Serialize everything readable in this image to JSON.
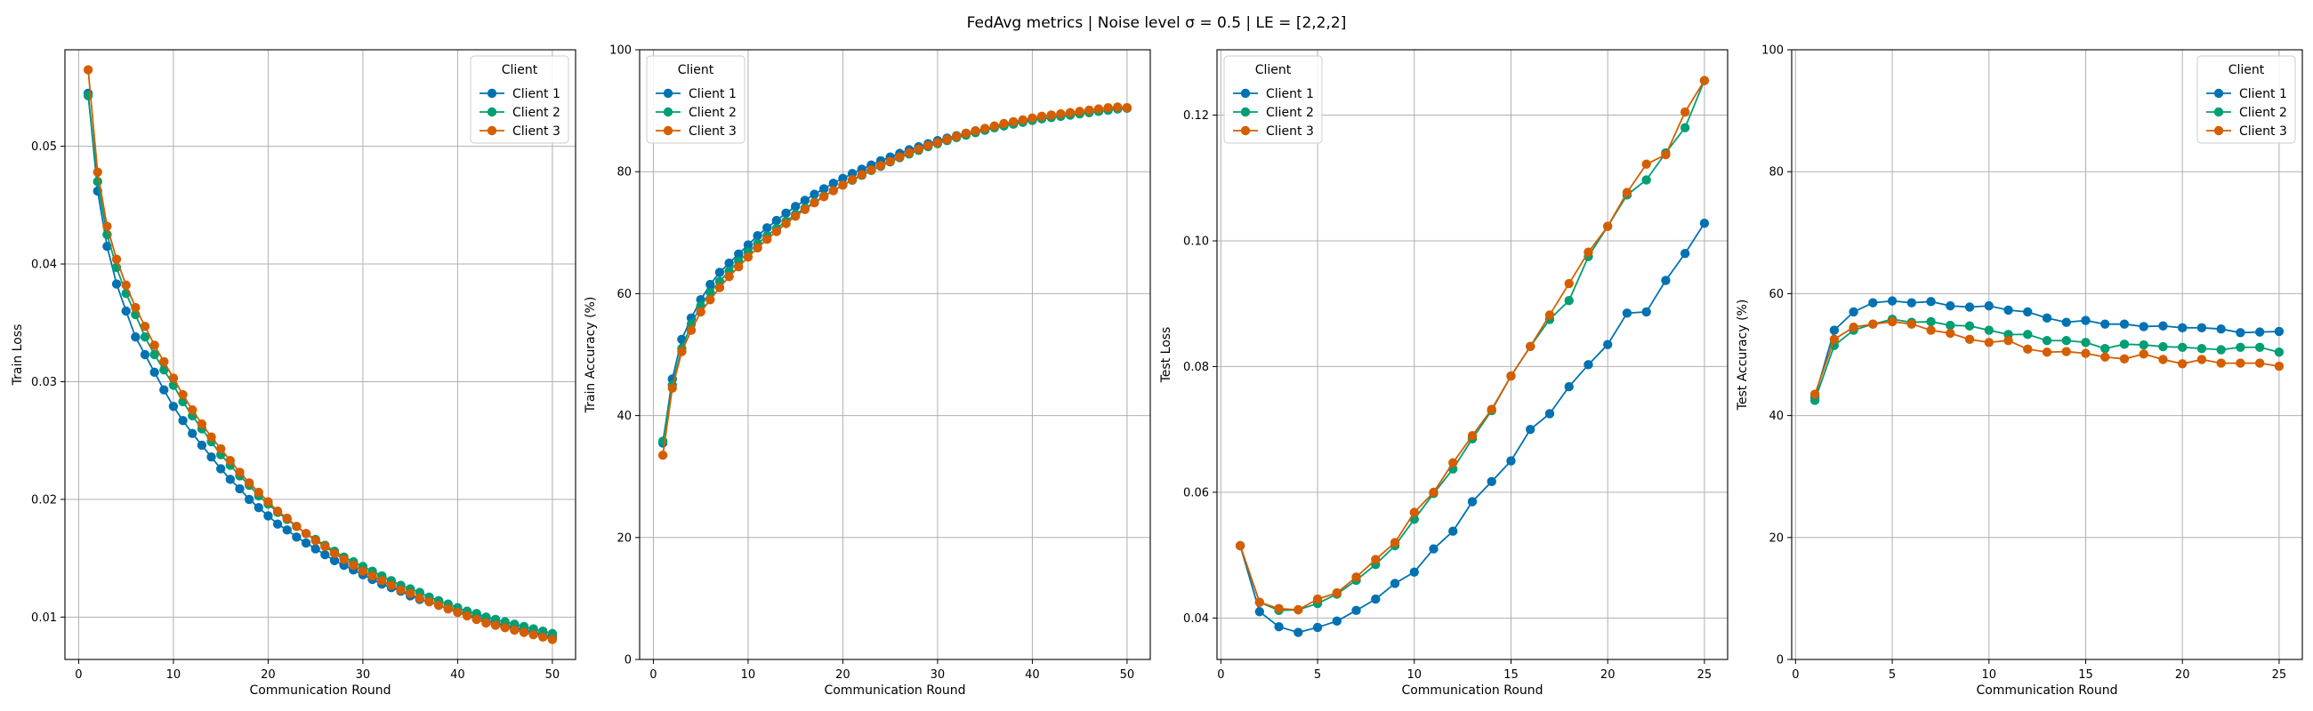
{
  "figure": {
    "suptitle": "FedAvg metrics | Noise level σ = 0.5 | LE = [2,2,2]"
  },
  "colors": {
    "client_1": "#0072B2",
    "client_2": "#009E73",
    "client_3": "#D55E00",
    "grid": "#b0b0b0"
  },
  "chart_data": [
    {
      "type": "line",
      "xlabel": "Communication Round",
      "ylabel": "Train Loss",
      "xlim": [
        -1.45,
        52.45
      ],
      "ylim": [
        0.0064,
        0.0582
      ],
      "xticks": [
        0,
        10,
        20,
        30,
        40,
        50
      ],
      "yticks": [
        0.01,
        0.02,
        0.03,
        0.04,
        0.05
      ],
      "ytick_labels": [
        "0.01",
        "0.02",
        "0.03",
        "0.04",
        "0.05"
      ],
      "grid": true,
      "legend": {
        "title": "Client",
        "position": "top-right"
      },
      "x": [
        1,
        2,
        3,
        4,
        5,
        6,
        7,
        8,
        9,
        10,
        11,
        12,
        13,
        14,
        15,
        16,
        17,
        18,
        19,
        20,
        21,
        22,
        23,
        24,
        25,
        26,
        27,
        28,
        29,
        30,
        31,
        32,
        33,
        34,
        35,
        36,
        37,
        38,
        39,
        40,
        41,
        42,
        43,
        44,
        45,
        46,
        47,
        48,
        49,
        50
      ],
      "series": [
        {
          "name": "Client 1",
          "color_key": "client_1",
          "values": [
            0.0545,
            0.0462,
            0.0415,
            0.0383,
            0.036,
            0.0338,
            0.0323,
            0.0308,
            0.0293,
            0.0279,
            0.0267,
            0.0256,
            0.0246,
            0.0236,
            0.0226,
            0.0217,
            0.0209,
            0.02,
            0.0193,
            0.0186,
            0.0179,
            0.0174,
            0.0168,
            0.0163,
            0.0158,
            0.0153,
            0.0148,
            0.0144,
            0.014,
            0.0136,
            0.0132,
            0.0128,
            0.0125,
            0.0122,
            0.0118,
            0.0115,
            0.0113,
            0.011,
            0.0107,
            0.0105,
            0.0102,
            0.01,
            0.0097,
            0.0095,
            0.0093,
            0.0091,
            0.0089,
            0.0087,
            0.0085,
            0.0083
          ]
        },
        {
          "name": "Client 2",
          "color_key": "client_2",
          "values": [
            0.0543,
            0.047,
            0.0425,
            0.0397,
            0.0375,
            0.0357,
            0.0338,
            0.0323,
            0.031,
            0.0297,
            0.0283,
            0.0271,
            0.026,
            0.0249,
            0.0238,
            0.0229,
            0.022,
            0.0212,
            0.0203,
            0.0196,
            0.0189,
            0.0183,
            0.0177,
            0.0171,
            0.0166,
            0.0161,
            0.0156,
            0.0151,
            0.0147,
            0.0143,
            0.0139,
            0.0135,
            0.0131,
            0.0127,
            0.0124,
            0.0121,
            0.0117,
            0.0114,
            0.0111,
            0.0108,
            0.0105,
            0.0103,
            0.01,
            0.0098,
            0.0096,
            0.0094,
            0.0092,
            0.009,
            0.0088,
            0.0086
          ]
        },
        {
          "name": "Client 3",
          "color_key": "client_3",
          "values": [
            0.0565,
            0.0478,
            0.0432,
            0.0404,
            0.0382,
            0.0363,
            0.0347,
            0.0331,
            0.0317,
            0.0303,
            0.0289,
            0.0276,
            0.0264,
            0.0253,
            0.0243,
            0.0233,
            0.0223,
            0.0214,
            0.0206,
            0.0198,
            0.019,
            0.0184,
            0.0177,
            0.0171,
            0.0165,
            0.016,
            0.0154,
            0.0149,
            0.0144,
            0.0139,
            0.0135,
            0.0131,
            0.0127,
            0.0123,
            0.012,
            0.0116,
            0.0113,
            0.011,
            0.0107,
            0.0104,
            0.0101,
            0.0098,
            0.0095,
            0.0093,
            0.0091,
            0.0089,
            0.0087,
            0.0085,
            0.0083,
            0.0081
          ]
        }
      ]
    },
    {
      "type": "line",
      "xlabel": "Communication Round",
      "ylabel": "Train Accuracy (%)",
      "xlim": [
        -1.45,
        52.45
      ],
      "ylim": [
        0,
        100
      ],
      "xticks": [
        0,
        10,
        20,
        30,
        40,
        50
      ],
      "yticks": [
        0,
        20,
        40,
        60,
        80,
        100
      ],
      "ytick_labels": [
        "0",
        "20",
        "40",
        "60",
        "80",
        "100"
      ],
      "grid": true,
      "legend": {
        "title": "Client",
        "position": "top-left"
      },
      "x": [
        1,
        2,
        3,
        4,
        5,
        6,
        7,
        8,
        9,
        10,
        11,
        12,
        13,
        14,
        15,
        16,
        17,
        18,
        19,
        20,
        21,
        22,
        23,
        24,
        25,
        26,
        27,
        28,
        29,
        30,
        31,
        32,
        33,
        34,
        35,
        36,
        37,
        38,
        39,
        40,
        41,
        42,
        43,
        44,
        45,
        46,
        47,
        48,
        49,
        50
      ],
      "series": [
        {
          "name": "Client 1",
          "color_key": "client_1",
          "values": [
            35.5,
            46.0,
            52.5,
            56.0,
            59.0,
            61.5,
            63.5,
            65.0,
            66.5,
            68.0,
            69.5,
            70.8,
            72.0,
            73.2,
            74.3,
            75.3,
            76.3,
            77.2,
            78.1,
            78.9,
            79.7,
            80.4,
            81.1,
            81.8,
            82.4,
            83.0,
            83.6,
            84.1,
            84.6,
            85.1,
            85.5,
            85.9,
            86.3,
            86.7,
            87.0,
            87.3,
            87.6,
            87.9,
            88.2,
            88.5,
            88.7,
            88.9,
            89.1,
            89.3,
            89.5,
            89.7,
            89.9,
            90.1,
            90.3,
            90.4
          ]
        },
        {
          "name": "Client 2",
          "color_key": "client_2",
          "values": [
            35.8,
            45.0,
            51.0,
            55.0,
            58.0,
            60.2,
            62.0,
            63.7,
            65.3,
            66.8,
            68.2,
            69.5,
            70.7,
            71.9,
            73.0,
            74.0,
            75.0,
            76.0,
            76.9,
            77.8,
            78.6,
            79.4,
            80.2,
            80.9,
            81.6,
            82.3,
            82.9,
            83.5,
            84.1,
            84.6,
            85.1,
            85.6,
            86.0,
            86.4,
            86.8,
            87.2,
            87.5,
            87.8,
            88.1,
            88.4,
            88.7,
            88.9,
            89.1,
            89.3,
            89.5,
            89.7,
            89.9,
            90.1,
            90.3,
            90.5
          ]
        },
        {
          "name": "Client 3",
          "color_key": "client_3",
          "values": [
            33.5,
            44.5,
            50.5,
            54.0,
            57.0,
            59.0,
            61.0,
            62.8,
            64.4,
            66.0,
            67.5,
            68.9,
            70.2,
            71.5,
            72.7,
            73.8,
            74.9,
            75.9,
            76.9,
            77.8,
            78.7,
            79.5,
            80.3,
            81.0,
            81.7,
            82.4,
            83.1,
            83.7,
            84.3,
            84.8,
            85.3,
            85.8,
            86.3,
            86.7,
            87.1,
            87.5,
            87.9,
            88.2,
            88.5,
            88.8,
            89.1,
            89.3,
            89.5,
            89.7,
            89.9,
            90.1,
            90.3,
            90.5,
            90.6,
            90.5
          ]
        }
      ]
    },
    {
      "type": "line",
      "xlabel": "Communication Round",
      "ylabel": "Test Loss",
      "xlim": [
        -0.2,
        26.2
      ],
      "ylim": [
        0.0334,
        0.1304
      ],
      "xticks": [
        0,
        5,
        10,
        15,
        20,
        25
      ],
      "yticks": [
        0.04,
        0.06,
        0.08,
        0.1,
        0.12
      ],
      "ytick_labels": [
        "0.04",
        "0.06",
        "0.08",
        "0.10",
        "0.12"
      ],
      "grid": true,
      "legend": {
        "title": "Client",
        "position": "top-left"
      },
      "x": [
        1,
        2,
        3,
        4,
        5,
        6,
        7,
        8,
        9,
        10,
        11,
        12,
        13,
        14,
        15,
        16,
        17,
        18,
        19,
        20,
        21,
        22,
        23,
        24,
        25
      ],
      "series": [
        {
          "name": "Client 1",
          "color_key": "client_1",
          "values": [
            0.0515,
            0.041,
            0.0386,
            0.0377,
            0.0385,
            0.0395,
            0.0412,
            0.043,
            0.0455,
            0.0473,
            0.051,
            0.0538,
            0.0585,
            0.0617,
            0.065,
            0.07,
            0.0725,
            0.0768,
            0.0803,
            0.0835,
            0.0885,
            0.0887,
            0.0937,
            0.098,
            0.1028
          ]
        },
        {
          "name": "Client 2",
          "color_key": "client_2",
          "values": [
            0.0515,
            0.0425,
            0.0412,
            0.0413,
            0.0423,
            0.0438,
            0.046,
            0.0485,
            0.0515,
            0.0557,
            0.0598,
            0.0637,
            0.0685,
            0.073,
            0.0785,
            0.0832,
            0.0875,
            0.0905,
            0.0975,
            0.1023,
            0.1073,
            0.1097,
            0.114,
            0.118,
            0.1255
          ]
        },
        {
          "name": "Client 3",
          "color_key": "client_3",
          "values": [
            0.0515,
            0.0425,
            0.0415,
            0.0413,
            0.043,
            0.044,
            0.0465,
            0.0493,
            0.052,
            0.0568,
            0.06,
            0.0647,
            0.069,
            0.0732,
            0.0785,
            0.0832,
            0.0882,
            0.0932,
            0.0982,
            0.1023,
            0.1077,
            0.1122,
            0.1137,
            0.1205,
            0.1255
          ]
        }
      ]
    },
    {
      "type": "line",
      "xlabel": "Communication Round",
      "ylabel": "Test Accuracy (%)",
      "xlim": [
        -0.2,
        26.2
      ],
      "ylim": [
        0,
        100
      ],
      "xticks": [
        0,
        5,
        10,
        15,
        20,
        25
      ],
      "yticks": [
        0,
        20,
        40,
        60,
        80,
        100
      ],
      "ytick_labels": [
        "0",
        "20",
        "40",
        "60",
        "80",
        "100"
      ],
      "grid": true,
      "legend": {
        "title": "Client",
        "position": "top-right"
      },
      "x": [
        1,
        2,
        3,
        4,
        5,
        6,
        7,
        8,
        9,
        10,
        11,
        12,
        13,
        14,
        15,
        16,
        17,
        18,
        19,
        20,
        21,
        22,
        23,
        24,
        25
      ],
      "series": [
        {
          "name": "Client 1",
          "color_key": "client_1",
          "values": [
            43.0,
            54.0,
            57.0,
            58.5,
            58.8,
            58.5,
            58.7,
            58.0,
            57.8,
            58.0,
            57.3,
            57.0,
            56.0,
            55.3,
            55.6,
            55.0,
            55.0,
            54.6,
            54.7,
            54.4,
            54.4,
            54.2,
            53.6,
            53.7,
            53.8
          ]
        },
        {
          "name": "Client 2",
          "color_key": "client_2",
          "values": [
            42.5,
            51.5,
            54.0,
            55.0,
            55.8,
            55.3,
            55.4,
            54.8,
            54.7,
            54.0,
            53.3,
            53.3,
            52.3,
            52.3,
            52.0,
            51.0,
            51.7,
            51.6,
            51.3,
            51.2,
            51.0,
            50.8,
            51.2,
            51.2,
            50.4
          ]
        },
        {
          "name": "Client 3",
          "color_key": "client_3",
          "values": [
            43.5,
            52.5,
            54.5,
            55.0,
            55.4,
            55.0,
            54.0,
            53.5,
            52.5,
            52.0,
            52.3,
            50.9,
            50.4,
            50.5,
            50.2,
            49.6,
            49.3,
            50.1,
            49.2,
            48.5,
            49.2,
            48.6,
            48.6,
            48.6,
            48.1
          ]
        }
      ]
    }
  ]
}
